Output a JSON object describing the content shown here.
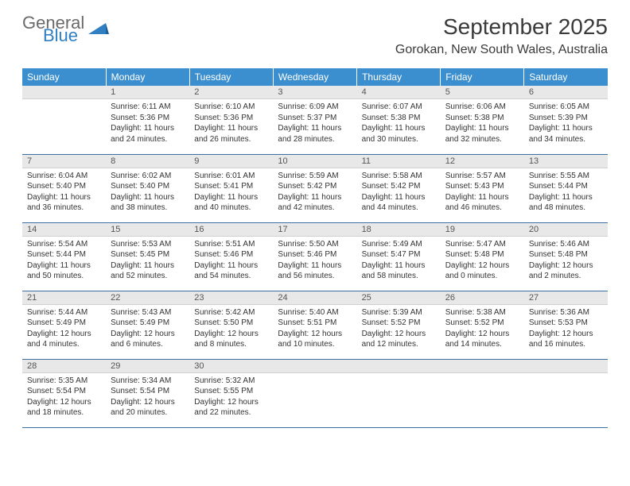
{
  "brand": {
    "general": "General",
    "blue": "Blue"
  },
  "title": "September 2025",
  "location": "Gorokan, New South Wales, Australia",
  "colors": {
    "header_bg": "#3c8fce",
    "header_fg": "#ffffff",
    "daynum_bg": "#e8e8e8",
    "rule": "#3c6fa0",
    "text": "#333333",
    "brand_gray": "#6a6a6a",
    "brand_blue": "#2f7fc2"
  },
  "columns": [
    "Sunday",
    "Monday",
    "Tuesday",
    "Wednesday",
    "Thursday",
    "Friday",
    "Saturday"
  ],
  "layout": {
    "first_weekday_index": 1,
    "days_in_month": 30
  },
  "days": {
    "1": {
      "sunrise": "6:11 AM",
      "sunset": "5:36 PM",
      "daylight": "11 hours and 24 minutes."
    },
    "2": {
      "sunrise": "6:10 AM",
      "sunset": "5:36 PM",
      "daylight": "11 hours and 26 minutes."
    },
    "3": {
      "sunrise": "6:09 AM",
      "sunset": "5:37 PM",
      "daylight": "11 hours and 28 minutes."
    },
    "4": {
      "sunrise": "6:07 AM",
      "sunset": "5:38 PM",
      "daylight": "11 hours and 30 minutes."
    },
    "5": {
      "sunrise": "6:06 AM",
      "sunset": "5:38 PM",
      "daylight": "11 hours and 32 minutes."
    },
    "6": {
      "sunrise": "6:05 AM",
      "sunset": "5:39 PM",
      "daylight": "11 hours and 34 minutes."
    },
    "7": {
      "sunrise": "6:04 AM",
      "sunset": "5:40 PM",
      "daylight": "11 hours and 36 minutes."
    },
    "8": {
      "sunrise": "6:02 AM",
      "sunset": "5:40 PM",
      "daylight": "11 hours and 38 minutes."
    },
    "9": {
      "sunrise": "6:01 AM",
      "sunset": "5:41 PM",
      "daylight": "11 hours and 40 minutes."
    },
    "10": {
      "sunrise": "5:59 AM",
      "sunset": "5:42 PM",
      "daylight": "11 hours and 42 minutes."
    },
    "11": {
      "sunrise": "5:58 AM",
      "sunset": "5:42 PM",
      "daylight": "11 hours and 44 minutes."
    },
    "12": {
      "sunrise": "5:57 AM",
      "sunset": "5:43 PM",
      "daylight": "11 hours and 46 minutes."
    },
    "13": {
      "sunrise": "5:55 AM",
      "sunset": "5:44 PM",
      "daylight": "11 hours and 48 minutes."
    },
    "14": {
      "sunrise": "5:54 AM",
      "sunset": "5:44 PM",
      "daylight": "11 hours and 50 minutes."
    },
    "15": {
      "sunrise": "5:53 AM",
      "sunset": "5:45 PM",
      "daylight": "11 hours and 52 minutes."
    },
    "16": {
      "sunrise": "5:51 AM",
      "sunset": "5:46 PM",
      "daylight": "11 hours and 54 minutes."
    },
    "17": {
      "sunrise": "5:50 AM",
      "sunset": "5:46 PM",
      "daylight": "11 hours and 56 minutes."
    },
    "18": {
      "sunrise": "5:49 AM",
      "sunset": "5:47 PM",
      "daylight": "11 hours and 58 minutes."
    },
    "19": {
      "sunrise": "5:47 AM",
      "sunset": "5:48 PM",
      "daylight": "12 hours and 0 minutes."
    },
    "20": {
      "sunrise": "5:46 AM",
      "sunset": "5:48 PM",
      "daylight": "12 hours and 2 minutes."
    },
    "21": {
      "sunrise": "5:44 AM",
      "sunset": "5:49 PM",
      "daylight": "12 hours and 4 minutes."
    },
    "22": {
      "sunrise": "5:43 AM",
      "sunset": "5:49 PM",
      "daylight": "12 hours and 6 minutes."
    },
    "23": {
      "sunrise": "5:42 AM",
      "sunset": "5:50 PM",
      "daylight": "12 hours and 8 minutes."
    },
    "24": {
      "sunrise": "5:40 AM",
      "sunset": "5:51 PM",
      "daylight": "12 hours and 10 minutes."
    },
    "25": {
      "sunrise": "5:39 AM",
      "sunset": "5:52 PM",
      "daylight": "12 hours and 12 minutes."
    },
    "26": {
      "sunrise": "5:38 AM",
      "sunset": "5:52 PM",
      "daylight": "12 hours and 14 minutes."
    },
    "27": {
      "sunrise": "5:36 AM",
      "sunset": "5:53 PM",
      "daylight": "12 hours and 16 minutes."
    },
    "28": {
      "sunrise": "5:35 AM",
      "sunset": "5:54 PM",
      "daylight": "12 hours and 18 minutes."
    },
    "29": {
      "sunrise": "5:34 AM",
      "sunset": "5:54 PM",
      "daylight": "12 hours and 20 minutes."
    },
    "30": {
      "sunrise": "5:32 AM",
      "sunset": "5:55 PM",
      "daylight": "12 hours and 22 minutes."
    }
  },
  "labels": {
    "sunrise": "Sunrise:",
    "sunset": "Sunset:",
    "daylight": "Daylight:"
  }
}
